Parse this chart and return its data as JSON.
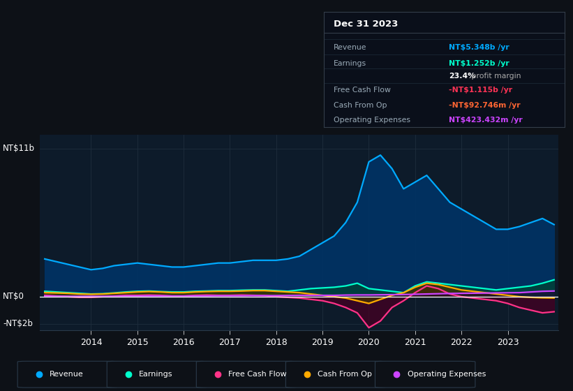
{
  "bg_color": "#0d1117",
  "plot_bg_color": "#0d1b2a",
  "grid_color": "#1e2d3d",
  "ylim": [
    -2500000000.0,
    12000000000.0
  ],
  "years": [
    2013.0,
    2013.25,
    2013.5,
    2013.75,
    2014.0,
    2014.25,
    2014.5,
    2014.75,
    2015.0,
    2015.25,
    2015.5,
    2015.75,
    2016.0,
    2016.25,
    2016.5,
    2016.75,
    2017.0,
    2017.25,
    2017.5,
    2017.75,
    2018.0,
    2018.25,
    2018.5,
    2018.75,
    2019.0,
    2019.25,
    2019.5,
    2019.75,
    2020.0,
    2020.25,
    2020.5,
    2020.75,
    2021.0,
    2021.25,
    2021.5,
    2021.75,
    2022.0,
    2022.25,
    2022.5,
    2022.75,
    2023.0,
    2023.25,
    2023.5,
    2023.75,
    2024.0
  ],
  "revenue": [
    2800000000,
    2600000000,
    2400000000,
    2200000000,
    2000000000,
    2100000000,
    2300000000,
    2400000000,
    2500000000,
    2400000000,
    2300000000,
    2200000000,
    2200000000,
    2300000000,
    2400000000,
    2500000000,
    2500000000,
    2600000000,
    2700000000,
    2700000000,
    2700000000,
    2800000000,
    3000000000,
    3500000000,
    4000000000,
    4500000000,
    5500000000,
    7000000000,
    10000000000,
    10500000000,
    9500000000,
    8000000000,
    8500000000,
    9000000000,
    8000000000,
    7000000000,
    6500000000,
    6000000000,
    5500000000,
    5000000000,
    5000000000,
    5200000000,
    5500000000,
    5800000000,
    5348000000
  ],
  "earnings": [
    400000000,
    350000000,
    300000000,
    250000000,
    200000000,
    220000000,
    280000000,
    350000000,
    400000000,
    420000000,
    380000000,
    350000000,
    350000000,
    400000000,
    420000000,
    450000000,
    450000000,
    480000000,
    500000000,
    500000000,
    450000000,
    400000000,
    500000000,
    600000000,
    650000000,
    700000000,
    800000000,
    1000000000,
    600000000,
    500000000,
    400000000,
    300000000,
    800000000,
    1100000000,
    1000000000,
    900000000,
    800000000,
    700000000,
    600000000,
    500000000,
    600000000,
    700000000,
    800000000,
    1000000000,
    1252000000
  ],
  "free_cash_flow": [
    100000000,
    50000000,
    0,
    -50000000,
    -50000000,
    0,
    50000000,
    100000000,
    100000000,
    120000000,
    100000000,
    50000000,
    50000000,
    100000000,
    120000000,
    100000000,
    100000000,
    120000000,
    100000000,
    80000000,
    0,
    -50000000,
    -100000000,
    -200000000,
    -300000000,
    -500000000,
    -800000000,
    -1200000000,
    -2300000000,
    -1800000000,
    -800000000,
    -300000000,
    300000000,
    800000000,
    600000000,
    200000000,
    0,
    -100000000,
    -200000000,
    -300000000,
    -500000000,
    -800000000,
    -1000000000,
    -1200000000,
    -1115000000
  ],
  "cash_from_op": [
    300000000,
    280000000,
    250000000,
    200000000,
    180000000,
    200000000,
    250000000,
    300000000,
    350000000,
    380000000,
    350000000,
    300000000,
    300000000,
    350000000,
    380000000,
    400000000,
    400000000,
    420000000,
    450000000,
    450000000,
    400000000,
    350000000,
    300000000,
    200000000,
    100000000,
    0,
    -100000000,
    -300000000,
    -500000000,
    -200000000,
    100000000,
    300000000,
    700000000,
    1000000000,
    900000000,
    700000000,
    500000000,
    400000000,
    300000000,
    200000000,
    100000000,
    0,
    -50000000,
    -80000000,
    -92746000
  ],
  "op_expenses": [
    50000000,
    40000000,
    30000000,
    30000000,
    30000000,
    30000000,
    40000000,
    50000000,
    50000000,
    60000000,
    60000000,
    50000000,
    50000000,
    60000000,
    60000000,
    70000000,
    70000000,
    70000000,
    80000000,
    80000000,
    80000000,
    90000000,
    100000000,
    100000000,
    100000000,
    100000000,
    120000000,
    130000000,
    130000000,
    140000000,
    150000000,
    160000000,
    180000000,
    200000000,
    220000000,
    240000000,
    250000000,
    260000000,
    270000000,
    280000000,
    290000000,
    300000000,
    350000000,
    400000000,
    423432000
  ],
  "revenue_color": "#00aaff",
  "revenue_fill": "#003366",
  "earnings_color": "#00ffcc",
  "earnings_fill": "#004433",
  "fcf_color": "#ff3388",
  "fcf_fill": "#440022",
  "cashop_color": "#ffaa00",
  "cashop_fill": "#443300",
  "opex_color": "#cc44ff",
  "opex_fill": "#220033",
  "legend_labels": [
    "Revenue",
    "Earnings",
    "Free Cash Flow",
    "Cash From Op",
    "Operating Expenses"
  ],
  "legend_colors": [
    "#00aaff",
    "#00ffcc",
    "#ff3388",
    "#ffaa00",
    "#cc44ff"
  ],
  "xticks": [
    2014,
    2015,
    2016,
    2017,
    2018,
    2019,
    2020,
    2021,
    2022,
    2023
  ],
  "y_label_nt11b": "NT$11b",
  "y_label_nt0": "NT$0",
  "y_label_ntm2b": "-NT$2b",
  "tooltip_title": "Dec 31 2023",
  "tooltip_rows": [
    {
      "label": "Revenue",
      "value": "NT$5.348b /yr",
      "value_color": "#00aaff",
      "bold_prefix": null
    },
    {
      "label": "Earnings",
      "value": "NT$1.252b /yr",
      "value_color": "#00ffcc",
      "bold_prefix": null
    },
    {
      "label": "",
      "value": " profit margin",
      "value_color": "#aaaaaa",
      "bold_prefix": "23.4%"
    },
    {
      "label": "Free Cash Flow",
      "value": "-NT$1.115b /yr",
      "value_color": "#ff3355",
      "bold_prefix": null
    },
    {
      "label": "Cash From Op",
      "value": "-NT$92.746m /yr",
      "value_color": "#ff6633",
      "bold_prefix": null
    },
    {
      "label": "Operating Expenses",
      "value": "NT$423.432m /yr",
      "value_color": "#cc44ff",
      "bold_prefix": null
    }
  ]
}
